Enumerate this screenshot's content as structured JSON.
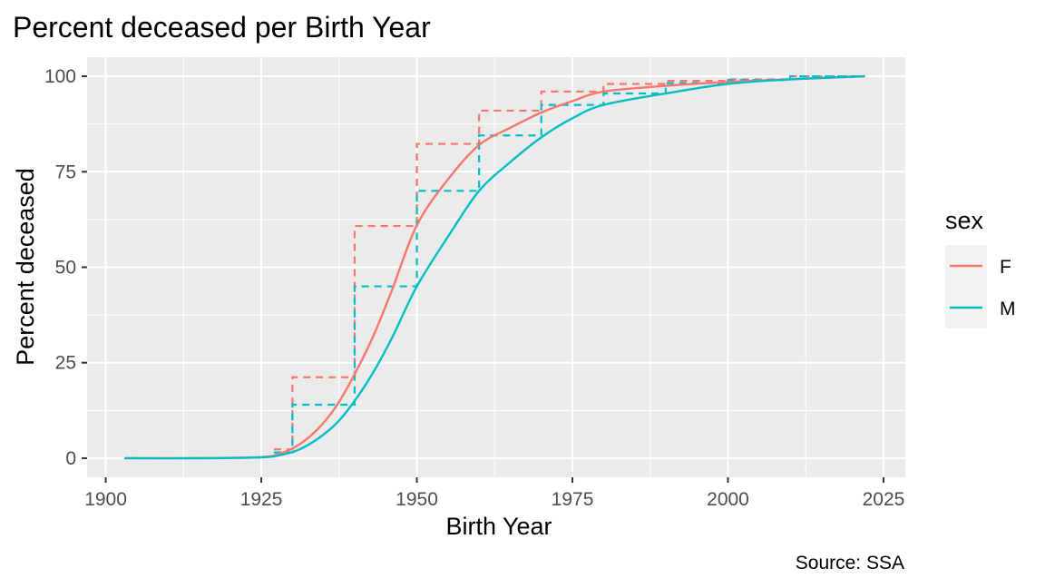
{
  "chart_data": {
    "type": "line",
    "title": "Percent deceased per Birth Year",
    "xlabel": "Birth Year",
    "ylabel": "Percent deceased",
    "caption": "Source: SSA",
    "xlim": [
      1900,
      2025
    ],
    "ylim": [
      0,
      100
    ],
    "x_ticks": [
      1900,
      1925,
      1950,
      1975,
      2000,
      2025
    ],
    "y_ticks": [
      0,
      25,
      50,
      75,
      100
    ],
    "grid": true,
    "legend": {
      "title": "sex",
      "position": "right",
      "entries": [
        "F",
        "M"
      ]
    },
    "colors": {
      "F": "#F8766D",
      "M": "#00BFC4",
      "panel": "#EBEBEB",
      "grid": "#FFFFFF"
    },
    "series": [
      {
        "name": "F",
        "style": "solid",
        "x": [
          1903,
          1915,
          1925,
          1928,
          1931,
          1934,
          1937,
          1940,
          1943,
          1946,
          1950,
          1955,
          1960,
          1965,
          1970,
          1975,
          1980,
          1990,
          2000,
          2010,
          2022
        ],
        "y": [
          0,
          0,
          0.3,
          1.2,
          3.5,
          7.5,
          13.5,
          22,
          32,
          44,
          61,
          73,
          82,
          86.5,
          90.5,
          93.5,
          96,
          97.5,
          98.5,
          99.2,
          100
        ]
      },
      {
        "name": "M",
        "style": "solid",
        "x": [
          1903,
          1915,
          1925,
          1928,
          1931,
          1934,
          1937,
          1940,
          1943,
          1946,
          1950,
          1955,
          1960,
          1965,
          1970,
          1975,
          1980,
          1990,
          2000,
          2010,
          2022
        ],
        "y": [
          0,
          0,
          0.2,
          0.8,
          2.2,
          5,
          9,
          15,
          22.5,
          31.5,
          45,
          58,
          70,
          77.5,
          84,
          89,
          92.5,
          95.5,
          98,
          99.2,
          100
        ]
      },
      {
        "name": "F",
        "style": "dashed-step",
        "x": [
          1930,
          1940,
          1950,
          1960,
          1970,
          1980,
          1990,
          2000,
          2010,
          2022
        ],
        "y": [
          2.3,
          21.2,
          60.8,
          82.3,
          91,
          96,
          98,
          98.8,
          99.2,
          100
        ]
      },
      {
        "name": "M",
        "style": "dashed-step",
        "x": [
          1930,
          1940,
          1950,
          1960,
          1970,
          1980,
          1990,
          2000,
          2010,
          2022
        ],
        "y": [
          1.5,
          14,
          45,
          70,
          84.5,
          92.5,
          95.5,
          98.2,
          99,
          100
        ]
      }
    ]
  }
}
